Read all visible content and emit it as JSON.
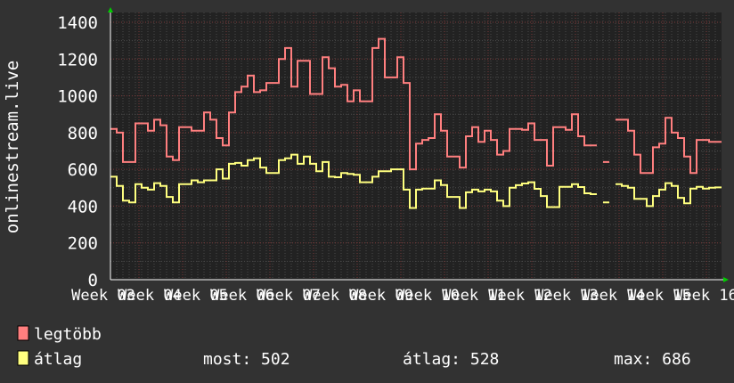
{
  "chart_data": {
    "type": "line",
    "ylabel": "onlinestream.live",
    "xlabel": "",
    "ylim": [
      0,
      1400
    ],
    "yticks": [
      "0",
      "200",
      "400",
      "600",
      "800",
      "1000",
      "1200",
      "1400"
    ],
    "xticks": [
      "Week 03",
      "Week 04",
      "Week 05",
      "Week 06",
      "Week 07",
      "Week 08",
      "Week 09",
      "Week 10",
      "Week 11",
      "Week 12",
      "Week 13",
      "Week 14",
      "Week 15",
      "Week 16"
    ],
    "grid": true,
    "legend_placement": "bottom-left",
    "series": [
      {
        "name": "legtöbb",
        "color": "#ff7f7f",
        "values": [
          820,
          800,
          640,
          640,
          850,
          850,
          810,
          870,
          840,
          670,
          650,
          830,
          830,
          810,
          810,
          910,
          870,
          770,
          730,
          910,
          1020,
          1050,
          1110,
          1020,
          1030,
          1070,
          1070,
          1200,
          1260,
          1050,
          1190,
          1190,
          1010,
          1010,
          1210,
          1150,
          1050,
          1060,
          970,
          1030,
          970,
          970,
          1260,
          1310,
          1100,
          1100,
          1210,
          1070,
          600,
          740,
          760,
          770,
          900,
          810,
          670,
          670,
          610,
          780,
          830,
          750,
          810,
          760,
          680,
          700,
          820,
          820,
          815,
          850,
          760,
          760,
          620,
          830,
          830,
          815,
          900,
          780,
          730,
          730,
          null,
          640,
          null,
          870,
          870,
          810,
          680,
          580,
          580,
          720,
          740,
          880,
          800,
          770,
          670,
          580,
          760,
          760,
          750,
          750
        ]
      },
      {
        "name": "átlag",
        "color": "#ffff7f",
        "values": [
          560,
          510,
          430,
          420,
          520,
          500,
          490,
          525,
          510,
          450,
          420,
          520,
          520,
          540,
          530,
          540,
          540,
          600,
          550,
          630,
          635,
          620,
          650,
          660,
          610,
          580,
          580,
          650,
          660,
          680,
          630,
          670,
          630,
          590,
          640,
          560,
          557,
          580,
          575,
          570,
          530,
          530,
          560,
          590,
          590,
          600,
          600,
          490,
          390,
          490,
          495,
          495,
          540,
          515,
          450,
          450,
          390,
          475,
          490,
          480,
          490,
          480,
          430,
          400,
          500,
          514,
          523,
          530,
          494,
          455,
          395,
          395,
          505,
          505,
          520,
          504,
          470,
          465,
          null,
          420,
          null,
          520,
          510,
          500,
          440,
          440,
          400,
          455,
          490,
          525,
          510,
          445,
          415,
          495,
          505,
          495,
          500,
          502
        ]
      }
    ]
  },
  "legend": {
    "items": [
      {
        "label": "legtöbb",
        "color": "#ff7f7f"
      },
      {
        "label": "átlag",
        "color": "#ffff7f"
      }
    ],
    "stats": {
      "current": "most: 502",
      "average": "átlag: 528",
      "max": "max: 686"
    }
  },
  "colors": {
    "background": "#323232",
    "plot_background": "#222222",
    "arrow": "#00cc00"
  }
}
